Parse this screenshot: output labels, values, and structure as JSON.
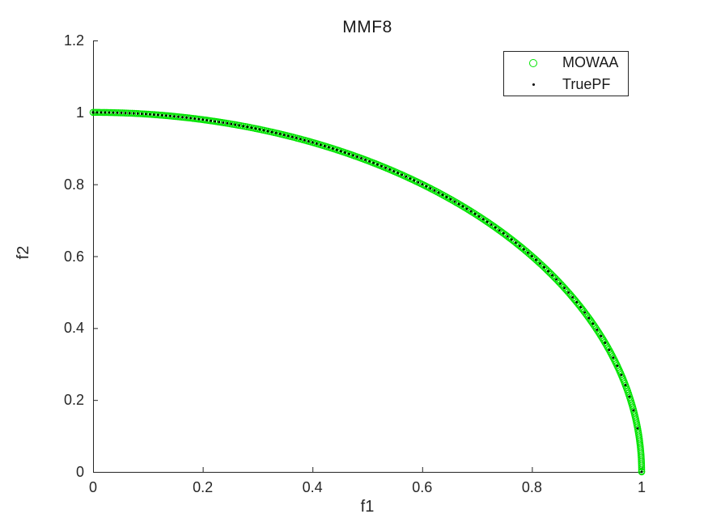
{
  "figure": {
    "background": "#ffffff",
    "axes_color": "#262626",
    "text_color": "#262626"
  },
  "chart_data": {
    "type": "scatter",
    "title": "MMF8",
    "xlabel": "f1",
    "ylabel": "f2",
    "xlim": [
      0,
      1
    ],
    "ylim": [
      0,
      1.2
    ],
    "xticks": [
      0,
      0.2,
      0.4,
      0.6,
      0.8,
      1
    ],
    "yticks": [
      0,
      0.2,
      0.4,
      0.6,
      0.8,
      1,
      1.2
    ],
    "xtick_labels": [
      "0",
      "0.2",
      "0.4",
      "0.6",
      "0.8",
      "1"
    ],
    "ytick_labels": [
      "0",
      "0.2",
      "0.4",
      "0.6",
      "0.8",
      "1",
      "1.2"
    ],
    "grid": false,
    "box": false,
    "tick_direction": "in",
    "pareto_front_formula": "f2 = sqrt(1 - f1^2), 0 <= f1 <= 1",
    "series": [
      {
        "name": "MOWAA",
        "marker": "open-circle",
        "color": "#00e400",
        "marker_radius_px": 3.7,
        "marker_stroke_px": 1.2,
        "distribution": "densely overlapping along entire Pareto front",
        "approx_point_spacing_px": 2.4
      },
      {
        "name": "TruePF",
        "marker": "dot",
        "color": "#000000",
        "marker_radius_px": 1.4,
        "n_points": 136,
        "distribution": "uniform in f1 from 0 to 1"
      }
    ],
    "sample_points": {
      "f1": [
        0,
        0.1,
        0.2,
        0.3,
        0.4,
        0.5,
        0.6,
        0.7,
        0.8,
        0.9,
        1.0
      ],
      "f2": [
        1,
        0.995,
        0.98,
        0.954,
        0.917,
        0.866,
        0.8,
        0.714,
        0.6,
        0.436,
        0
      ]
    },
    "legend": {
      "position": "top-right",
      "border_color": "#262626",
      "background": "#ffffff",
      "entries": [
        "MOWAA",
        "TruePF"
      ]
    }
  }
}
